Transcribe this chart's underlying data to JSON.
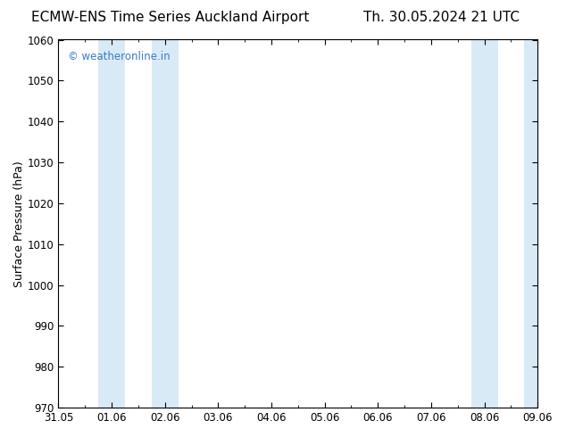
{
  "title_left": "ECMW-ENS Time Series Auckland Airport",
  "title_right": "Th. 30.05.2024 21 UTC",
  "ylabel": "Surface Pressure (hPa)",
  "ylim": [
    970,
    1060
  ],
  "yticks": [
    970,
    980,
    990,
    1000,
    1010,
    1020,
    1030,
    1040,
    1050,
    1060
  ],
  "xlim_start": 0,
  "xlim_end": 9,
  "xtick_labels": [
    "31.05",
    "01.06",
    "02.06",
    "03.06",
    "04.06",
    "05.06",
    "06.06",
    "07.06",
    "08.06",
    "09.06"
  ],
  "xtick_positions": [
    0,
    1,
    2,
    3,
    4,
    5,
    6,
    7,
    8,
    9
  ],
  "shaded_bands": [
    {
      "xstart": 0.75,
      "xend": 1.25
    },
    {
      "xstart": 1.75,
      "xend": 2.25
    },
    {
      "xstart": 7.75,
      "xend": 8.25
    },
    {
      "xstart": 8.75,
      "xend": 9.0
    }
  ],
  "band_color": "#d9eaf7",
  "background_color": "#ffffff",
  "watermark_text": "© weatheronline.in",
  "watermark_color": "#3a7bbf",
  "title_fontsize": 11,
  "axis_label_fontsize": 9,
  "tick_fontsize": 8.5,
  "watermark_fontsize": 8.5
}
